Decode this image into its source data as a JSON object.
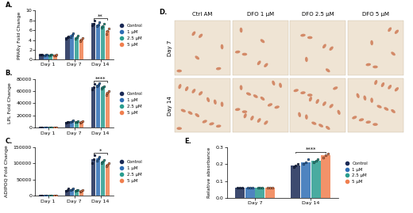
{
  "chart_data": [
    {
      "type": "bar",
      "title": "A.",
      "y_label": "PPARγ Fold Change",
      "categories": [
        "Day 1",
        "Day 7",
        "Day 14"
      ],
      "ylim": [
        0,
        10
      ],
      "yticks": [
        0,
        2,
        4,
        6,
        8,
        10
      ],
      "legend": "right",
      "annotations": [
        {
          "text": "**",
          "category": "Day 14"
        }
      ],
      "series": [
        {
          "name": "Control",
          "color": "#1b2a56",
          "values": [
            1.0,
            4.5,
            7.5
          ],
          "points": [
            [
              1.0,
              1.0,
              1.0
            ],
            [
              4.2,
              4.5,
              4.8
            ],
            [
              7.0,
              7.4,
              8.0
            ]
          ]
        },
        {
          "name": "1 µM",
          "color": "#2f6eb5",
          "values": [
            1.0,
            5.0,
            7.2
          ],
          "points": [
            [
              0.9,
              1.0,
              1.1
            ],
            [
              4.6,
              5.0,
              5.4
            ],
            [
              6.8,
              7.2,
              7.6
            ]
          ]
        },
        {
          "name": "2.5 µM",
          "color": "#2a9d8f",
          "values": [
            1.0,
            4.6,
            6.9
          ],
          "points": [
            [
              0.9,
              1.0,
              1.1
            ],
            [
              4.3,
              4.6,
              4.9
            ],
            [
              6.5,
              6.9,
              7.3
            ]
          ]
        },
        {
          "name": "5 µM",
          "color": "#f07f4f",
          "values": [
            0.9,
            4.1,
            5.8
          ],
          "points": [
            [
              0.8,
              0.9,
              1.0
            ],
            [
              3.8,
              4.1,
              4.4
            ],
            [
              5.3,
              5.8,
              6.3
            ]
          ]
        }
      ]
    },
    {
      "type": "bar",
      "title": "B.",
      "y_label": "LPL Fold Change",
      "categories": [
        "Day 1",
        "Day 7",
        "Day 14"
      ],
      "ylim": [
        0,
        80000
      ],
      "yticks": [
        0,
        20000,
        40000,
        60000,
        80000
      ],
      "legend": "right",
      "annotations": [
        {
          "text": "****",
          "category": "Day 14"
        }
      ],
      "series": [
        {
          "name": "Control",
          "color": "#1b2a56",
          "values": [
            500,
            9000,
            66000
          ],
          "points": [
            [
              400,
              500,
              600
            ],
            [
              8000,
              9000,
              10000
            ],
            [
              62000,
              66000,
              72000
            ]
          ]
        },
        {
          "name": "1 µM",
          "color": "#2f6eb5",
          "values": [
            500,
            11000,
            70000
          ],
          "points": [
            [
              400,
              500,
              600
            ],
            [
              10000,
              11000,
              12000
            ],
            [
              68000,
              70000,
              73000
            ]
          ]
        },
        {
          "name": "2.5 µM",
          "color": "#2a9d8f",
          "values": [
            500,
            10000,
            66000
          ],
          "points": [
            [
              400,
              500,
              600
            ],
            [
              9000,
              10000,
              11000
            ],
            [
              64000,
              66000,
              68000
            ]
          ]
        },
        {
          "name": "5 µM",
          "color": "#f07f4f",
          "values": [
            500,
            9500,
            57000
          ],
          "points": [
            [
              400,
              500,
              600
            ],
            [
              8500,
              9500,
              10500
            ],
            [
              54000,
              57000,
              60000
            ]
          ]
        }
      ]
    },
    {
      "type": "bar",
      "title": "C.",
      "y_label": "ADIPOQ Fold Change",
      "categories": [
        "Day 1",
        "Day 7",
        "Day 14"
      ],
      "ylim": [
        0,
        150000
      ],
      "yticks": [
        0,
        50000,
        100000,
        150000
      ],
      "legend": "right",
      "annotations": [
        {
          "text": "*",
          "category": "Day 14"
        }
      ],
      "series": [
        {
          "name": "Control",
          "color": "#1b2a56",
          "values": [
            1000,
            18000,
            112000
          ],
          "points": [
            [
              800,
              1000,
              1200
            ],
            [
              15000,
              18000,
              22000
            ],
            [
              100000,
              112000,
              125000
            ]
          ]
        },
        {
          "name": "1 µM",
          "color": "#2f6eb5",
          "values": [
            1000,
            20000,
            115000
          ],
          "points": [
            [
              800,
              1000,
              1200
            ],
            [
              17000,
              20000,
              23000
            ],
            [
              108000,
              115000,
              120000
            ]
          ]
        },
        {
          "name": "2.5 µM",
          "color": "#2a9d8f",
          "values": [
            1000,
            17000,
            105000
          ],
          "points": [
            [
              800,
              1000,
              1200
            ],
            [
              15000,
              17000,
              19000
            ],
            [
              100000,
              105000,
              110000
            ]
          ]
        },
        {
          "name": "5 µM",
          "color": "#f07f4f",
          "values": [
            1000,
            16000,
            95000
          ],
          "points": [
            [
              800,
              1000,
              1200
            ],
            [
              14000,
              16000,
              18000
            ],
            [
              90000,
              95000,
              100000
            ]
          ]
        }
      ]
    },
    {
      "type": "bar",
      "title": "E.",
      "y_label": "Relative absorbance",
      "categories": [
        "Day 7",
        "Day 14"
      ],
      "ylim": [
        0.0,
        0.3
      ],
      "yticks": [
        0.0,
        0.1,
        0.2,
        0.3
      ],
      "legend": "right",
      "annotations": [
        {
          "text": "****",
          "category": "Day 14"
        }
      ],
      "series": [
        {
          "name": "Control",
          "color": "#1b2a56",
          "values": [
            0.06,
            0.19
          ],
          "points": [
            [
              0.06,
              0.06,
              0.06
            ],
            [
              0.18,
              0.19,
              0.2
            ]
          ]
        },
        {
          "name": "1 µM",
          "color": "#2f6eb5",
          "values": [
            0.06,
            0.21
          ],
          "points": [
            [
              0.06,
              0.06,
              0.06
            ],
            [
              0.2,
              0.21,
              0.23
            ]
          ]
        },
        {
          "name": "2.5 µM",
          "color": "#2a9d8f",
          "values": [
            0.06,
            0.22
          ],
          "points": [
            [
              0.06,
              0.06,
              0.06
            ],
            [
              0.21,
              0.22,
              0.23
            ]
          ]
        },
        {
          "name": "5 µM",
          "color": "#f07f4f",
          "values": [
            0.06,
            0.25
          ],
          "points": [
            [
              0.06,
              0.06,
              0.06
            ],
            [
              0.24,
              0.25,
              0.26
            ]
          ]
        }
      ]
    }
  ],
  "image_panel": {
    "title": "D.",
    "columns": [
      "Ctrl AM",
      "DFO 1 µM",
      "DFO 2.5 µM",
      "DFO 5 µM"
    ],
    "rows": [
      "Day 7",
      "Day 14"
    ]
  }
}
